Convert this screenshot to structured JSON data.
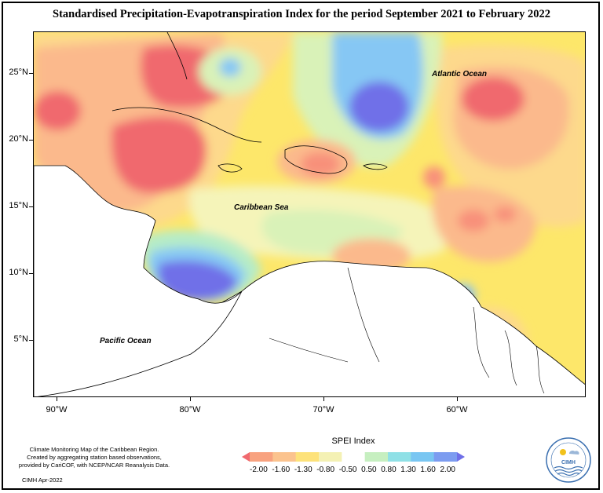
{
  "title": "Standardised Precipitation-Evapotranspiration Index for the period September 2021 to February 2022",
  "map": {
    "latitude_labels": [
      "25°N",
      "20°N",
      "15°N",
      "10°N",
      "5°N"
    ],
    "longitude_labels": [
      "90°W",
      "80°W",
      "70°W",
      "60°W"
    ],
    "labels": {
      "atlantic": "Atlantic Ocean",
      "caribbean": "Caribbean Sea",
      "pacific": "Pacific Ocean"
    },
    "colors": {
      "very_dry": "#f0696e",
      "dry": "#f8907a",
      "moderately_dry": "#fbb98c",
      "slightly_dry": "#fdd98c",
      "near_normal_dry": "#fde76a",
      "near_normal": "#f5f4b9",
      "near_normal_wet": "#d9f2b8",
      "slightly_wet": "#b6ecc7",
      "moderately_wet": "#96e4ec",
      "wet": "#86c7f4",
      "very_wet": "#7c8cf0",
      "extreme_wet": "#6f6fe8",
      "land": "#ffffff"
    }
  },
  "legend": {
    "title": "SPEI Index",
    "ticks": [
      "-2.00",
      "-1.60",
      "-1.30",
      "-0.80",
      "-0.50",
      "0.50",
      "0.80",
      "1.30",
      "1.60",
      "2.00"
    ],
    "colors": [
      "#f0696e",
      "#f8a27f",
      "#fbc38e",
      "#fde27a",
      "#f4f1b4",
      "#ffffff",
      "#c6efc0",
      "#8fe0e6",
      "#79c6f2",
      "#7c9cf0",
      "#6f6fe8"
    ]
  },
  "credits": {
    "lines": [
      "Climate Monitoring Map of the Caribbean Region.",
      "Created by aggregating station based observations,",
      "provided by CariCOF, with NCEP/NCAR Reanalysis Data."
    ],
    "date": "CIMH Apr-2022"
  },
  "logo": {
    "text": "CIMH"
  }
}
